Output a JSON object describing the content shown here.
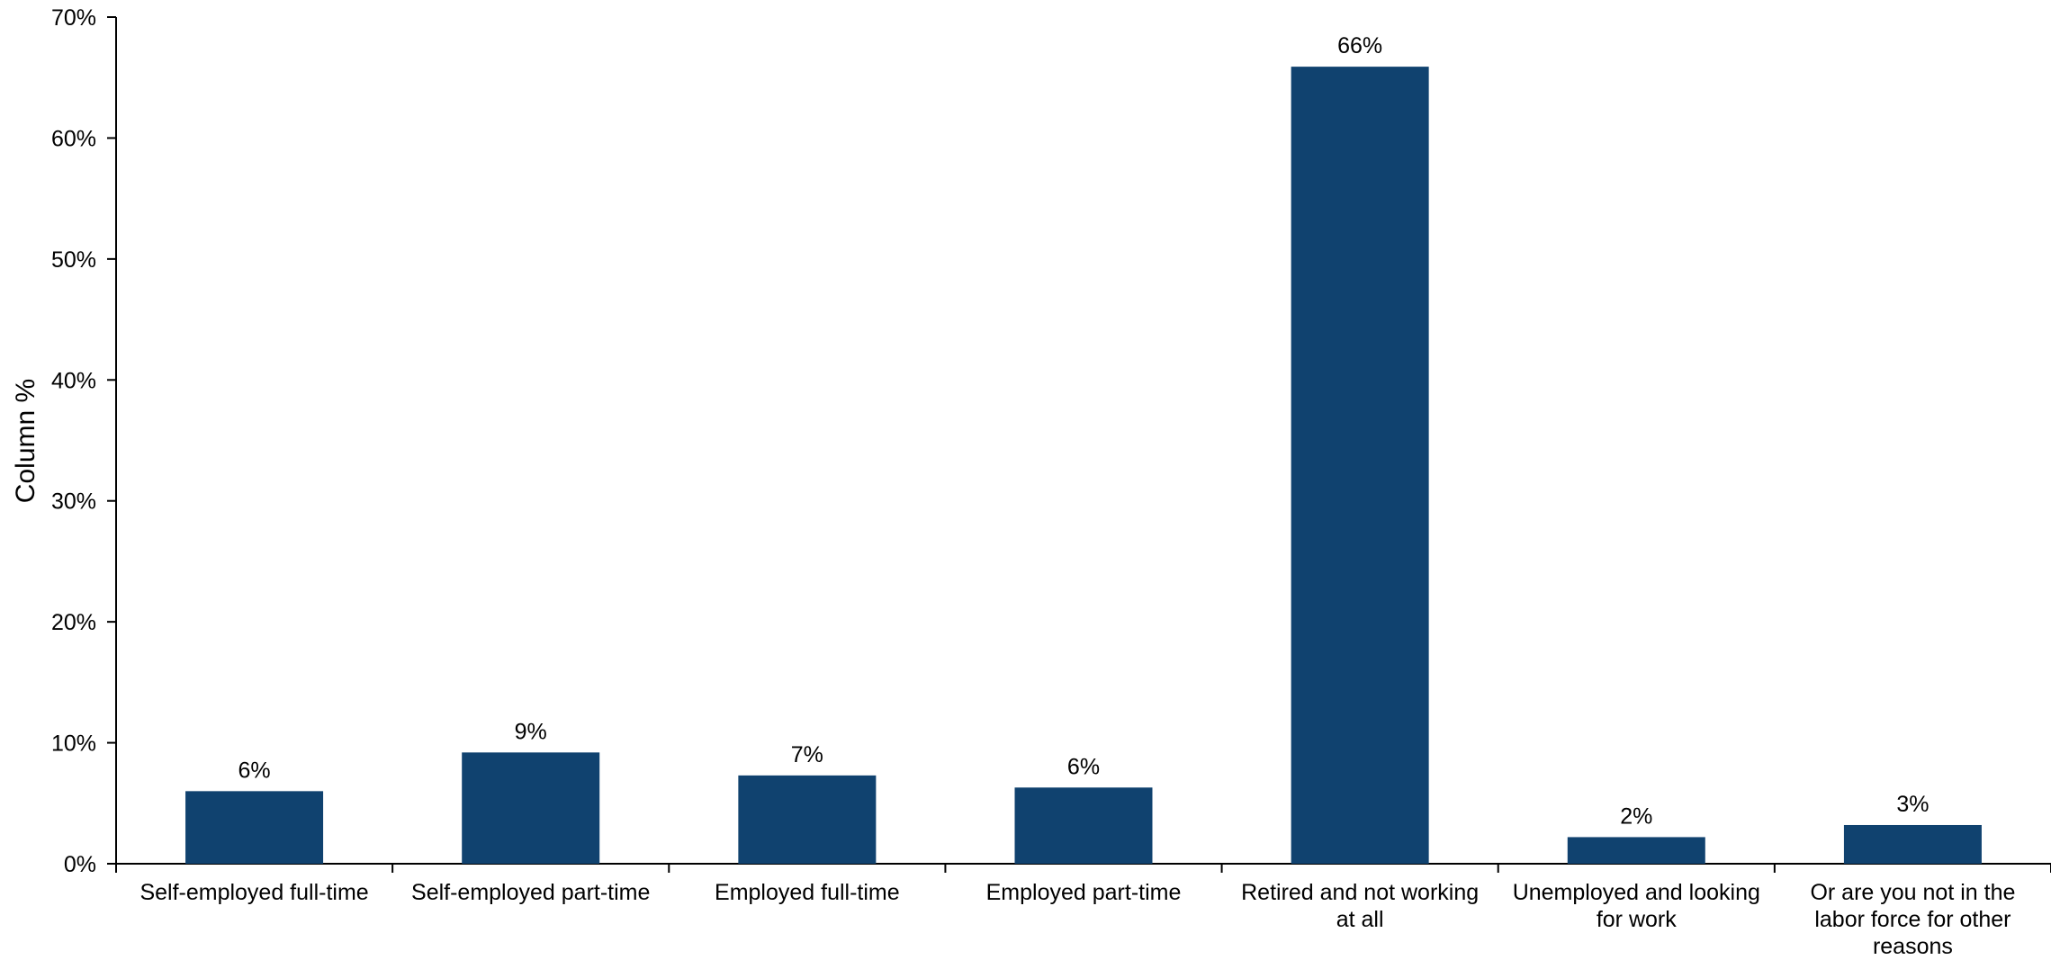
{
  "chart_data": {
    "type": "bar",
    "title": "",
    "xlabel": "",
    "ylabel": "Column %",
    "ylim": [
      0,
      70
    ],
    "yticks": [
      "0%",
      "10%",
      "20%",
      "30%",
      "40%",
      "50%",
      "60%",
      "70%"
    ],
    "categories": [
      "Self-employed full-time",
      "Self-employed part-time",
      "Employed full-time",
      "Employed part-time",
      "Retired and not working at all",
      "Unemployed and looking for work",
      "Or are you not in the labor force for other reasons"
    ],
    "category_lines": [
      [
        "Self-employed full-time"
      ],
      [
        "Self-employed part-time"
      ],
      [
        "Employed full-time"
      ],
      [
        "Employed part-time"
      ],
      [
        "Retired and not working",
        "at all"
      ],
      [
        "Unemployed and looking",
        "for work"
      ],
      [
        "Or are you not in the",
        "labor force for other",
        "reasons"
      ]
    ],
    "values": [
      6,
      9.2,
      7.3,
      6.3,
      65.9,
      2.2,
      3.2
    ],
    "data_labels": [
      "6%",
      "9%",
      "7%",
      "6%",
      "66%",
      "2%",
      "3%"
    ],
    "bar_color": "#10426f",
    "grid": false,
    "legend": "none"
  }
}
